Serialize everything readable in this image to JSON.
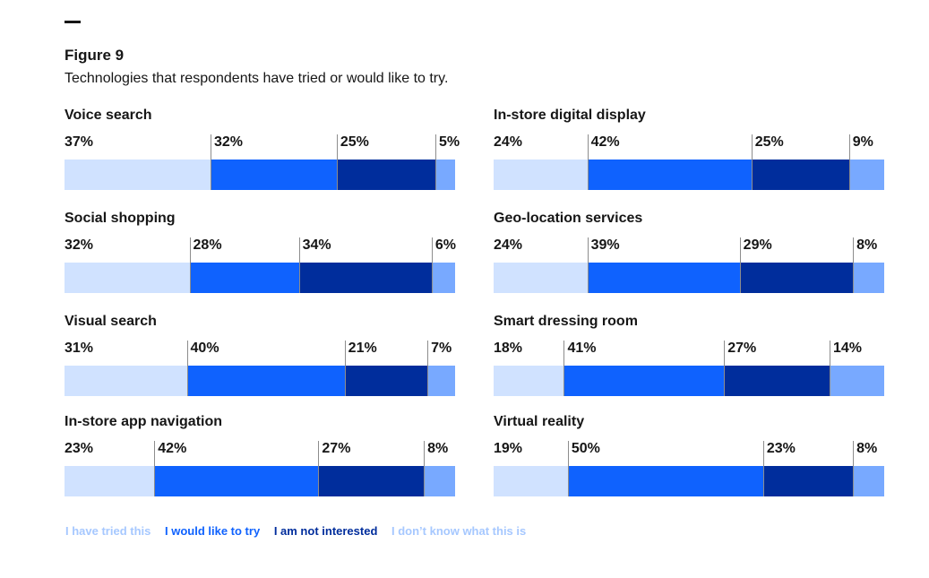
{
  "figure": {
    "label": "Figure 9",
    "subtitle": "Technologies that respondents have tried or would like to try."
  },
  "colors": {
    "tried": "#d0e2ff",
    "would_like": "#0f62fe",
    "not_interested": "#002d9c",
    "dont_know": "#78a9ff"
  },
  "legend": [
    {
      "label": "I have tried this",
      "color": "#a6c8ff"
    },
    {
      "label": "I would like to try",
      "color": "#0f62fe"
    },
    {
      "label": "I am not interested",
      "color": "#002d9c"
    },
    {
      "label": "I don’t know what this is",
      "color": "#a6c8ff"
    }
  ],
  "chart_data": {
    "type": "bar",
    "stacked": true,
    "orientation": "horizontal",
    "unit": "%",
    "series_names": [
      "I have tried this",
      "I would like to try",
      "I am not interested",
      "I don’t know what this is"
    ],
    "categories": [
      {
        "name": "Voice search",
        "values": [
          37,
          32,
          25,
          5
        ]
      },
      {
        "name": "Social shopping",
        "values": [
          32,
          28,
          34,
          6
        ]
      },
      {
        "name": "Visual search",
        "values": [
          31,
          40,
          21,
          7
        ]
      },
      {
        "name": "In-store app navigation",
        "values": [
          23,
          42,
          27,
          8
        ]
      },
      {
        "name": "In-store digital display",
        "values": [
          24,
          42,
          25,
          9
        ]
      },
      {
        "name": "Geo-location services",
        "values": [
          24,
          39,
          29,
          8
        ]
      },
      {
        "name": "Smart dressing room",
        "values": [
          18,
          41,
          27,
          14
        ]
      },
      {
        "name": "Virtual reality",
        "values": [
          19,
          50,
          23,
          8
        ]
      }
    ]
  }
}
